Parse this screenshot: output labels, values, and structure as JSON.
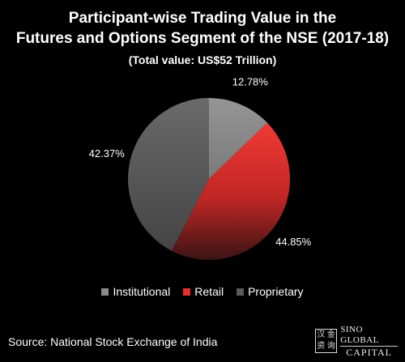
{
  "chart_data": {
    "type": "pie",
    "title_lines": [
      "Participant-wise Trading Value in the",
      "Futures and Options Segment of the NSE (2017-18)"
    ],
    "subtitle": "(Total value: US$52 Trillion)",
    "categories": [
      "Institutional",
      "Retail",
      "Proprietary"
    ],
    "values": [
      12.78,
      44.85,
      42.37
    ],
    "value_labels": [
      "12.78%",
      "44.85%",
      "42.37%"
    ],
    "colors": [
      "#8a8a8a",
      "#e8302e",
      "#5a5a5a"
    ],
    "start_angle_deg": 0,
    "direction": "clockwise",
    "legend_position": "bottom"
  },
  "source": "Source: National Stock Exchange of India",
  "logo": {
    "seal_chars": [
      "汉",
      "金",
      "资",
      "询"
    ],
    "line1": "SINO GLOBAL",
    "line2": "CAPITAL"
  }
}
